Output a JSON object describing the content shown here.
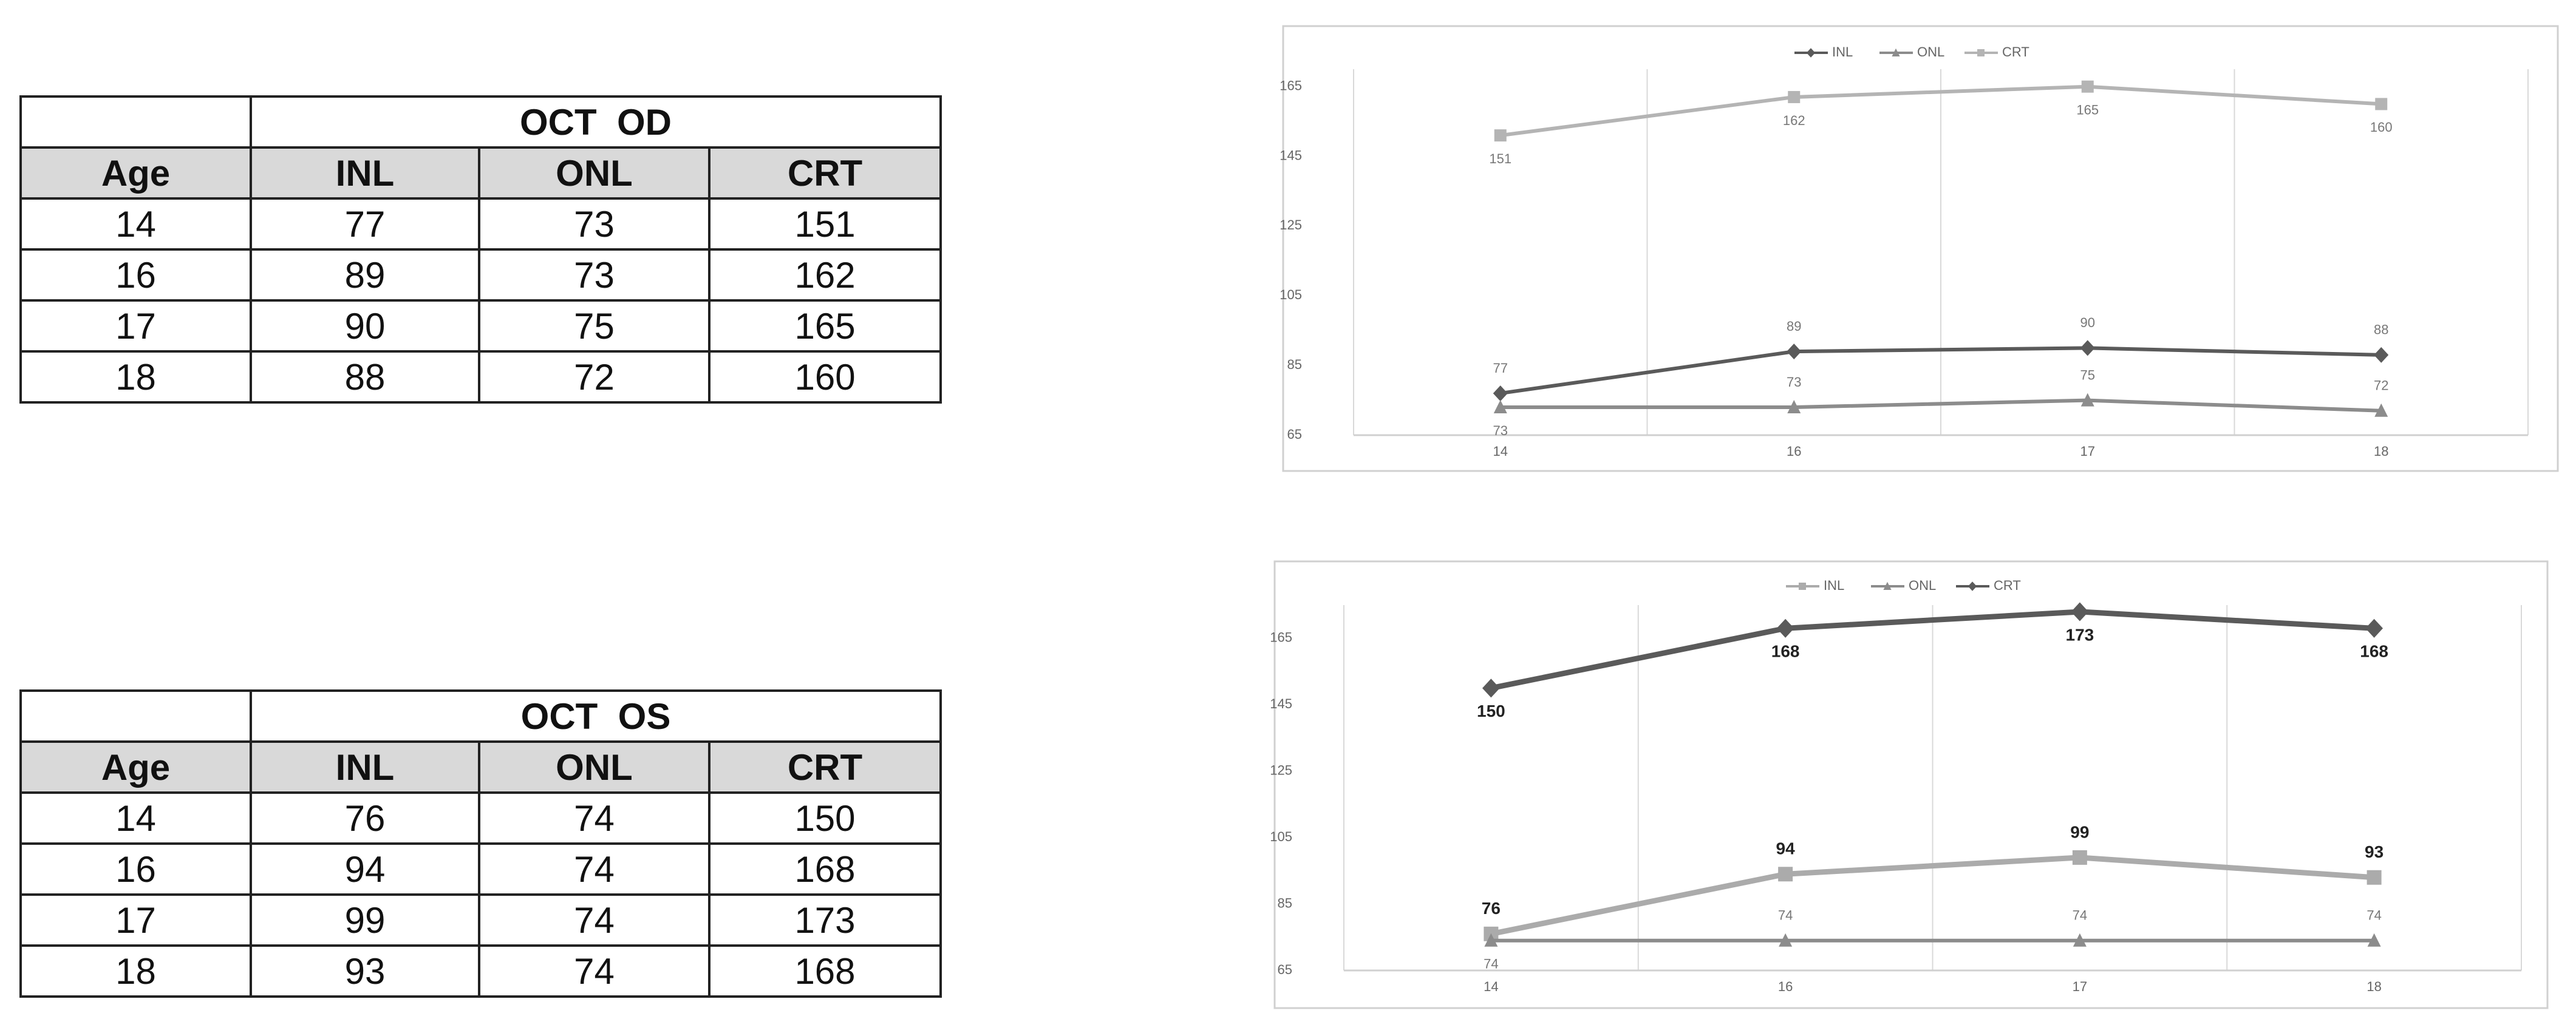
{
  "tables": [
    {
      "title": "OCT  OD",
      "header": [
        "Age",
        "INL",
        "ONL",
        "CRT"
      ],
      "rows": [
        [
          14,
          77,
          73,
          151
        ],
        [
          16,
          89,
          73,
          162
        ],
        [
          17,
          90,
          75,
          165
        ],
        [
          18,
          88,
          72,
          160
        ]
      ]
    },
    {
      "title": "OCT  OS",
      "header": [
        "Age",
        "INL",
        "ONL",
        "CRT"
      ],
      "rows": [
        [
          14,
          76,
          74,
          150
        ],
        [
          16,
          94,
          74,
          168
        ],
        [
          17,
          99,
          74,
          173
        ],
        [
          18,
          93,
          74,
          168
        ]
      ]
    }
  ],
  "chart_data": [
    {
      "type": "line",
      "categories": [
        "14",
        "16",
        "17",
        "18"
      ],
      "series": [
        {
          "name": "INL",
          "color": "#5a5a5a",
          "marker": "diamond",
          "values": [
            77,
            89,
            90,
            88
          ]
        },
        {
          "name": "ONL",
          "color": "#8c8c8c",
          "marker": "triangle",
          "values": [
            73,
            73,
            75,
            72
          ]
        },
        {
          "name": "CRT",
          "color": "#b4b4b4",
          "marker": "square",
          "values": [
            151,
            162,
            165,
            160
          ]
        }
      ],
      "ylim": [
        65,
        170
      ],
      "yticks": [
        65,
        85,
        105,
        125,
        145,
        165
      ],
      "grid": true,
      "legend": "top"
    },
    {
      "type": "line",
      "categories": [
        "14",
        "16",
        "17",
        "18"
      ],
      "series": [
        {
          "name": "INL",
          "color": "#ababab",
          "marker": "square",
          "values": [
            76,
            94,
            99,
            93
          ]
        },
        {
          "name": "ONL",
          "color": "#8c8c8c",
          "marker": "triangle",
          "values": [
            74,
            74,
            74,
            74
          ]
        },
        {
          "name": "CRT",
          "color": "#5a5a5a",
          "marker": "diamond",
          "values": [
            150,
            168,
            173,
            168
          ]
        }
      ],
      "ylim": [
        65,
        175
      ],
      "yticks": [
        65,
        85,
        105,
        125,
        145,
        165
      ],
      "grid": true,
      "legend": "top"
    }
  ]
}
